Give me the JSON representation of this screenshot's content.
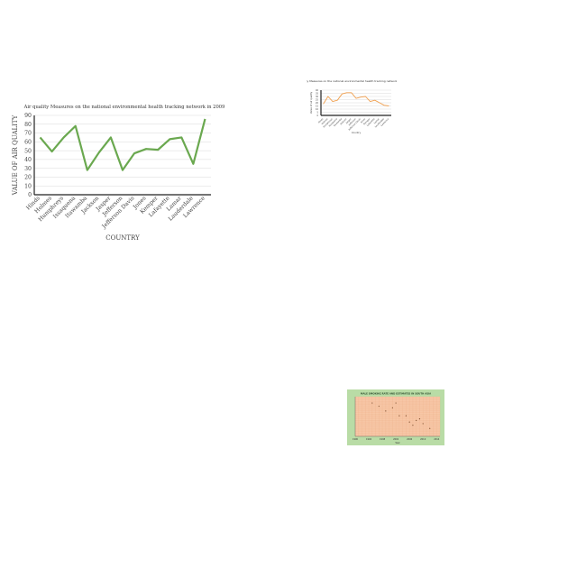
{
  "chart_data": [
    {
      "type": "line",
      "title": "Air quality Measures on the national environmental health tracking network in 2009",
      "xlabel": "COUNTRY",
      "ylabel": "VALUE OF AIR QUALITY",
      "categories": [
        "Hinds",
        "Holmes",
        "Humphreys",
        "Issaquena",
        "Itawamba",
        "Jackson",
        "Jasper",
        "Jefferson",
        "Jefferson Davis",
        "Jones",
        "Kemper",
        "Lafayette",
        "Lamar",
        "Lauderdale",
        "Lawrence"
      ],
      "values": [
        65,
        49,
        65,
        78,
        28,
        48,
        65,
        28,
        47,
        52,
        51,
        63,
        65,
        35,
        86
      ],
      "ylim": [
        0,
        90
      ],
      "yticks": [
        0,
        10,
        20,
        30,
        40,
        50,
        60,
        70,
        80,
        90
      ],
      "grid": true,
      "color": "#6aa84f"
    },
    {
      "type": "line",
      "title": "Air quality Measures on the national environmental health tracking network in 2013",
      "xlabel": "Country",
      "ylabel": "Value of air quality",
      "categories": [
        "Hinds",
        "Holmes",
        "Humphreys",
        "Issaquena",
        "Itawamba",
        "Jackson",
        "Jasper",
        "Jefferson",
        "Jefferson Davis",
        "Jones",
        "Kemper",
        "Lafayette",
        "Lamar",
        "Lauderdale",
        "Lawrence"
      ],
      "values": [
        18,
        30,
        22,
        24,
        34,
        36,
        36,
        27,
        29,
        30,
        22,
        24,
        20,
        16,
        15
      ],
      "ylim": [
        0,
        40
      ],
      "yticks": [
        0,
        5,
        10,
        15,
        20,
        25,
        30,
        35,
        40
      ],
      "grid": true,
      "color": "#f0a050"
    },
    {
      "type": "scatter",
      "title": "MALE SMOKING RATE AND ESTIMATES IN SOUTH ASIA",
      "xlabel": "Year",
      "ylabel": "",
      "x": [
        1995,
        1997,
        1999,
        2001,
        2002,
        2003,
        2005,
        2006,
        2007,
        2008,
        2009,
        2010,
        2012
      ],
      "y": [
        41,
        39,
        36,
        38,
        41,
        33,
        33,
        29,
        27,
        30,
        31,
        28,
        25
      ],
      "xlim": [
        1990,
        2015
      ],
      "ylim": [
        20,
        45
      ],
      "xticks": [
        1990,
        1994,
        1998,
        2002,
        2006,
        2010,
        2014
      ],
      "grid": true,
      "color": "#7a4a2a",
      "background": "#f7c7a7",
      "border": "#b9dca6"
    }
  ]
}
